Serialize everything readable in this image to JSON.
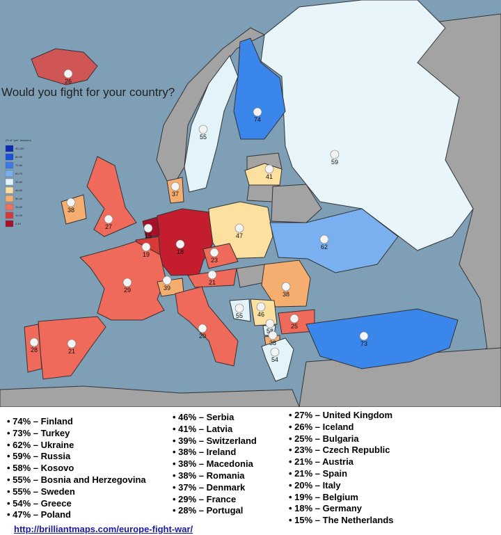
{
  "title": "Would you fight for your country?",
  "legend": {
    "title": "(% of \"yes\" answers)",
    "items": [
      {
        "label": "90-100",
        "color": "#0a2ab0"
      },
      {
        "label": "80-90",
        "color": "#1a4fd8"
      },
      {
        "label": "70-80",
        "color": "#3a7be8"
      },
      {
        "label": "60-70",
        "color": "#7ab0f0"
      },
      {
        "label": "50-60",
        "color": "#e2f3fa"
      },
      {
        "label": "40-50",
        "color": "#fbe0a0"
      },
      {
        "label": "30-40",
        "color": "#f5ad70"
      },
      {
        "label": "20-30",
        "color": "#f07060"
      },
      {
        "label": "10-20",
        "color": "#d83a3a"
      },
      {
        "label": "0-10",
        "color": "#a8102a"
      }
    ]
  },
  "map_values": [
    26,
    74,
    55,
    59,
    41,
    37,
    38,
    27,
    47,
    15,
    19,
    18,
    23,
    62,
    21,
    39,
    29,
    38,
    46,
    55,
    25,
    20,
    58,
    38,
    54,
    21,
    28,
    73
  ],
  "list": {
    "columns": [
      [
        "• 74% – Finland",
        "• 73% – Turkey",
        "• 62% – Ukraine",
        "• 59% – Russia",
        "• 58% – Kosovo",
        "• 55% – Bosnia and Herzegovina",
        "• 55% – Sweden",
        "• 54% – Greece",
        " • 47% – Poland"
      ],
      [
        "• 46% – Serbia",
        "• 41% – Latvia",
        "• 39% – Switzerland",
        "• 38% – Ireland",
        "• 38% – Macedonia",
        "• 38% – Romania",
        "• 37% – Denmark",
        "• 29% – France",
        "• 28% – Portugal"
      ],
      [
        "• 27% – United Kingdom",
        "• 26% – Iceland",
        "• 25% – Bulgaria",
        "• 23% – Czech Republic",
        "• 21% – Austria",
        "• 21% – Spain",
        "• 20% – Italy",
        "• 19% – Belgium",
        "• 18% – Germany",
        "• 15% – The Netherlands"
      ]
    ]
  },
  "url": "http://brilliantmaps.com/europe-fight-war/"
}
